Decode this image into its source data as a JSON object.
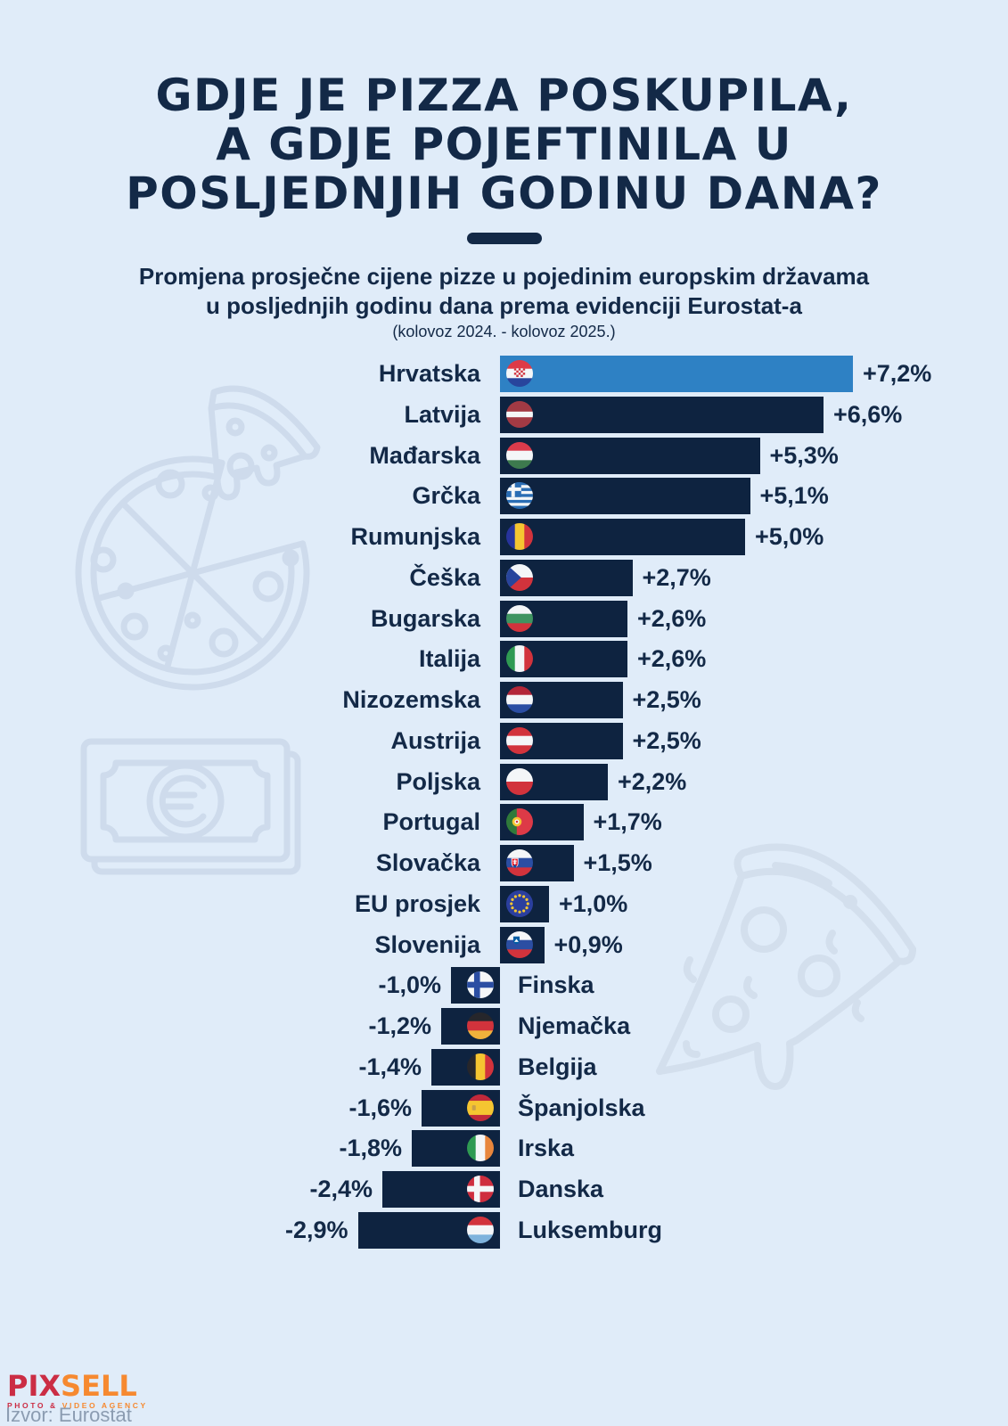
{
  "meta": {
    "colors": {
      "background": "#e0ecf9",
      "ink": "#132947",
      "bar": "#0e2340",
      "highlight": "#2e81c4",
      "illustration_line": "#cbd9ea",
      "source_gray": "#8b9cb1",
      "logo_red": "#cb2d44",
      "logo_orange": "#f68930"
    }
  },
  "header": {
    "title_lines": [
      "GDJE JE PIZZA POSKUPILA,",
      "A GDJE POJEFTINILA U",
      "POSLJEDNJIH GODINU DANA?"
    ],
    "subtitle_lines": [
      "Promjena prosječne cijene pizze u pojedinim europskim državama",
      "u posljednjih godinu dana prema evidenciji Eurostat-a"
    ],
    "period": "(kolovoz 2024. - kolovoz 2025.)"
  },
  "chart_data": {
    "type": "bar",
    "orientation": "horizontal",
    "unit": "percent change year-on-year",
    "title": "Promjena prosječne cijene pizze u pojedinim europskim državama (kolovoz 2024. - kolovoz 2025.)",
    "source": "Eurostat",
    "highlight_category": "Hrvatska",
    "xlim": [
      -3.5,
      7.5
    ],
    "grid": false,
    "legend": false,
    "categories": [
      "Hrvatska",
      "Latvija",
      "Mađarska",
      "Grčka",
      "Rumunjska",
      "Češka",
      "Bugarska",
      "Italija",
      "Nizozemska",
      "Austrija",
      "Poljska",
      "Portugal",
      "Slovačka",
      "EU prosjek",
      "Slovenija",
      "Finska",
      "Njemačka",
      "Belgija",
      "Španjolska",
      "Irska",
      "Danska",
      "Luksemburg"
    ],
    "values": [
      7.2,
      6.6,
      5.3,
      5.1,
      5.0,
      2.7,
      2.6,
      2.6,
      2.5,
      2.5,
      2.2,
      1.7,
      1.5,
      1.0,
      0.9,
      -1.0,
      -1.2,
      -1.4,
      -1.6,
      -1.8,
      -2.4,
      -2.9
    ],
    "value_labels": [
      "+7,2%",
      "+6,6%",
      "+5,3%",
      "+5,1%",
      "+5,0%",
      "+2,7%",
      "+2,6%",
      "+2,6%",
      "+2,5%",
      "+2,5%",
      "+2,2%",
      "+1,7%",
      "+1,5%",
      "+1,0%",
      "+0,9%",
      "-1,0%",
      "-1,2%",
      "-1,4%",
      "-1,6%",
      "-1,8%",
      "-2,4%",
      "-2,9%"
    ],
    "flag_names": [
      "croatia",
      "latvia",
      "hungary",
      "greece",
      "romania",
      "czechia",
      "bulgaria",
      "italy",
      "netherlands",
      "austria",
      "poland",
      "portugal",
      "slovakia",
      "eu",
      "slovenia",
      "finland",
      "germany",
      "belgium",
      "spain",
      "ireland",
      "denmark",
      "luxembourg"
    ],
    "flags": [
      {
        "kind": "h",
        "colors": [
          "#dd3a47",
          "#f4f6f8",
          "#28459c"
        ],
        "emblem": "croatia"
      },
      {
        "kind": "h",
        "colors": [
          "#a23a44",
          "#f4f6f8",
          "#a23a44"
        ],
        "weights": [
          2,
          1,
          2
        ]
      },
      {
        "kind": "h",
        "colors": [
          "#d93b4b",
          "#f4f6f8",
          "#3d7a4e"
        ]
      },
      {
        "kind": "greece",
        "colors": [
          "#2a6db4",
          "#f4f6f8"
        ]
      },
      {
        "kind": "v",
        "colors": [
          "#27339c",
          "#f5c531",
          "#d2333c"
        ]
      },
      {
        "kind": "czech",
        "colors": [
          "#f4f6f8",
          "#d2333c",
          "#27459c"
        ]
      },
      {
        "kind": "h",
        "colors": [
          "#f4f6f8",
          "#3f9461",
          "#d2333c"
        ]
      },
      {
        "kind": "v",
        "colors": [
          "#2f9a52",
          "#f4f6f8",
          "#d2333c"
        ]
      },
      {
        "kind": "h",
        "colors": [
          "#b32638",
          "#f4f6f8",
          "#2b4ea3"
        ]
      },
      {
        "kind": "h",
        "colors": [
          "#d2333c",
          "#f4f6f8",
          "#d2333c"
        ]
      },
      {
        "kind": "h",
        "colors": [
          "#f4f6f8",
          "#d2333c"
        ],
        "weights": [
          1,
          1
        ]
      },
      {
        "kind": "v",
        "colors": [
          "#2f7a3a",
          "#dd3a47"
        ],
        "weights": [
          2,
          3
        ],
        "emblem": "portugal"
      },
      {
        "kind": "h",
        "colors": [
          "#f4f6f8",
          "#2b4ea3",
          "#d2333c"
        ],
        "emblem": "slovakia"
      },
      {
        "kind": "eu",
        "colors": [
          "#2b3f9e",
          "#f5c531"
        ]
      },
      {
        "kind": "h",
        "colors": [
          "#f4f6f8",
          "#2b4ea3",
          "#d2333c"
        ],
        "emblem": "slovenia"
      },
      {
        "kind": "nordic",
        "colors": [
          "#f4f6f8",
          "#2b4ea3"
        ]
      },
      {
        "kind": "h",
        "colors": [
          "#26262b",
          "#d2333c",
          "#f0b13b"
        ]
      },
      {
        "kind": "v",
        "colors": [
          "#26262b",
          "#f5c531",
          "#d2333c"
        ]
      },
      {
        "kind": "h",
        "colors": [
          "#c1293a",
          "#f5c531",
          "#c1293a"
        ],
        "weights": [
          1,
          2,
          1
        ],
        "emblem": "spain"
      },
      {
        "kind": "v",
        "colors": [
          "#2f9a52",
          "#f4f6f8",
          "#e8863c"
        ]
      },
      {
        "kind": "nordic",
        "colors": [
          "#cf2e3e",
          "#f4f6f8"
        ]
      },
      {
        "kind": "h",
        "colors": [
          "#d2333c",
          "#f4f6f8",
          "#7fb3dc"
        ]
      }
    ]
  },
  "footer": {
    "logo_part1": "PIX",
    "logo_part2": "SELL",
    "tagline_part1": "PHOTO &",
    "tagline_part2": " VIDEO AGENCY",
    "source": "Izvor: Eurostat"
  }
}
